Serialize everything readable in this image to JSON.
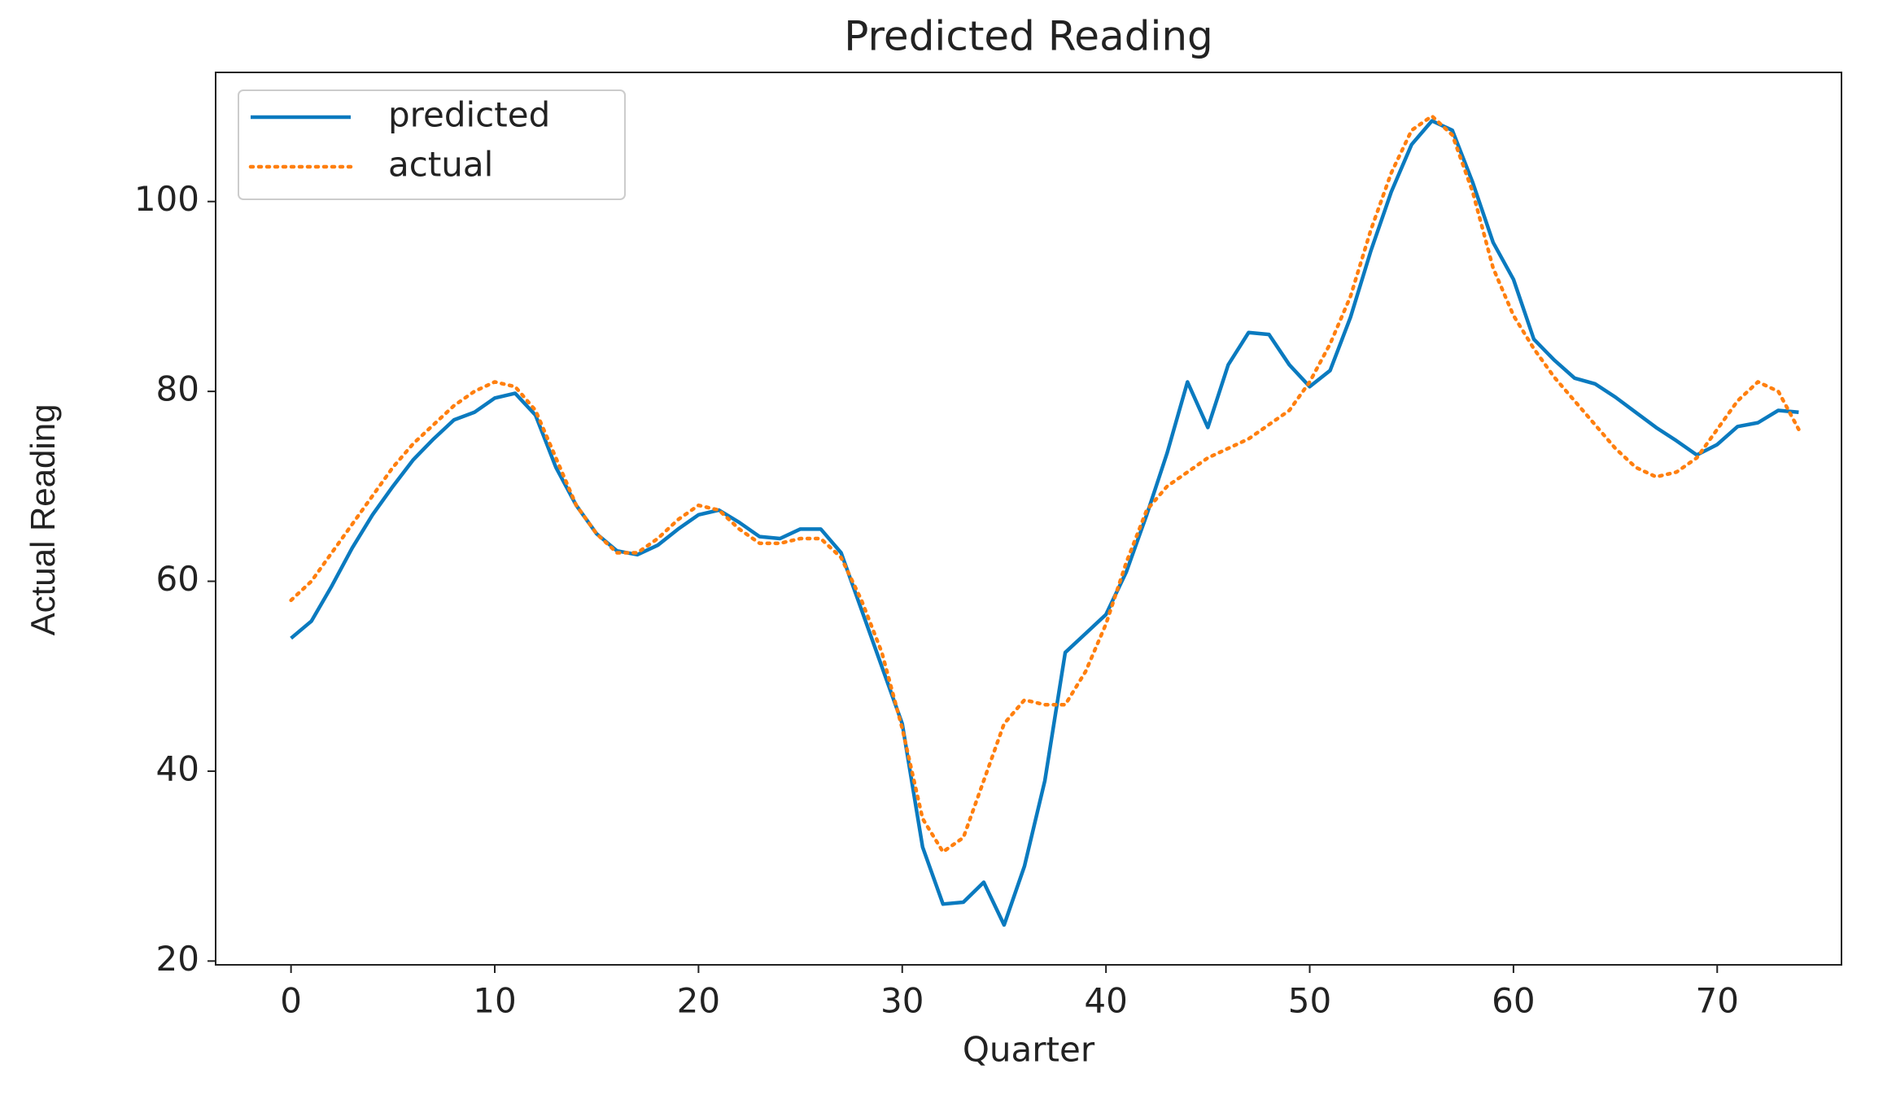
{
  "chart_data": {
    "type": "line",
    "title": "Predicted Reading",
    "x_label": "Quarter",
    "y_label": "Actual Reading",
    "x": [
      0,
      1,
      2,
      3,
      4,
      5,
      6,
      7,
      8,
      9,
      10,
      11,
      12,
      13,
      14,
      15,
      16,
      17,
      18,
      19,
      20,
      21,
      22,
      23,
      24,
      25,
      26,
      27,
      28,
      29,
      30,
      31,
      32,
      33,
      34,
      35,
      36,
      37,
      38,
      39,
      40,
      41,
      42,
      43,
      44,
      45,
      46,
      47,
      48,
      49,
      50,
      51,
      52,
      53,
      54,
      55,
      56,
      57,
      58,
      59,
      60,
      61,
      62,
      63,
      64,
      65,
      66,
      67,
      68,
      69,
      70,
      71,
      72,
      73,
      74
    ],
    "series": [
      {
        "name": "predicted",
        "color": "#0a7abf",
        "style": "solid",
        "values": [
          54,
          55.8,
          59.5,
          63.5,
          67,
          70,
          72.8,
          75,
          77,
          77.8,
          79.3,
          79.8,
          77.5,
          72,
          68,
          65,
          63.2,
          62.8,
          63.8,
          65.5,
          67,
          67.5,
          66.2,
          64.7,
          64.5,
          65.5,
          65.5,
          63,
          57,
          51,
          45,
          32,
          26,
          26.2,
          28.3,
          23.8,
          30,
          39,
          52.5,
          54.5,
          56.5,
          61,
          67,
          73.5,
          81,
          76.2,
          82.8,
          86.2,
          86,
          82.8,
          80.5,
          82.2,
          87.8,
          94.8,
          101,
          106,
          108.5,
          107.5,
          102,
          95.7,
          91.8,
          85.5,
          83.3,
          81.4,
          80.8,
          79.4,
          77.8,
          76.2,
          74.8,
          73.3,
          74.4,
          76.3,
          76.7,
          78,
          77.8
        ]
      },
      {
        "name": "actual",
        "color": "#ff7f0e",
        "style": "dotted",
        "values": [
          58,
          60,
          63,
          66,
          69,
          72,
          74.5,
          76.5,
          78.5,
          80,
          81,
          80.5,
          78,
          73,
          68,
          65,
          63,
          63,
          64.5,
          66.5,
          68,
          67.5,
          65.5,
          64,
          64,
          64.5,
          64.5,
          62.5,
          58,
          52.5,
          44.5,
          35,
          31.5,
          33,
          39,
          45,
          47.5,
          47,
          47,
          50.5,
          55.5,
          62,
          67.5,
          70,
          71.5,
          73,
          74,
          75,
          76.5,
          78,
          81,
          85,
          90,
          97,
          103,
          107.5,
          109,
          107,
          101,
          93,
          88,
          84.5,
          81.5,
          79,
          76.5,
          74,
          72,
          71,
          71.5,
          73,
          76,
          79,
          81,
          80,
          76
        ]
      }
    ],
    "xlim": [
      -3.7,
      76.1
    ],
    "xticks": [
      0,
      10,
      20,
      30,
      40,
      50,
      60,
      70
    ],
    "ylim": [
      19.6,
      113.6
    ],
    "yticks": [
      20,
      40,
      60,
      80,
      100
    ],
    "legend": "upper left",
    "grid": false
  }
}
